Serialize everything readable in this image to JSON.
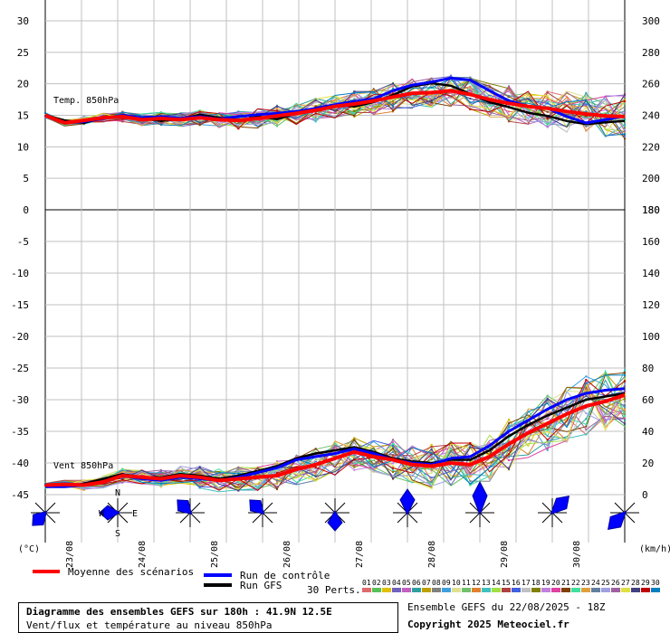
{
  "chart_data": {
    "type": "line",
    "dates": [
      "23/08",
      "24/08",
      "25/08",
      "26/08",
      "27/08",
      "28/08",
      "29/08",
      "30/08"
    ],
    "x_hours": [
      0,
      6,
      12,
      18,
      24,
      30,
      36,
      42,
      48,
      54,
      60,
      66,
      72,
      78,
      84,
      90,
      96,
      102,
      108,
      114,
      120,
      126,
      132,
      138,
      144,
      150,
      156,
      162,
      168,
      174,
      180
    ],
    "temp_panel": {
      "label": "Temp. 850hPa",
      "y_left_ticks": [
        30,
        25,
        20,
        15,
        10,
        5,
        0
      ],
      "y_right_ticks": [
        300,
        280,
        260,
        240,
        220,
        200,
        180
      ],
      "ylim": [
        0,
        30
      ],
      "mean": [
        15,
        13.8,
        14.2,
        14.6,
        14.8,
        14.3,
        14.5,
        14.3,
        14.6,
        14.3,
        14.2,
        14.5,
        14.9,
        15.3,
        15.8,
        16.4,
        16.8,
        17.3,
        17.9,
        18.5,
        18.6,
        18.9,
        18.3,
        17.5,
        16.9,
        16.4,
        16.1,
        15.6,
        15.2,
        14.9,
        14.8
      ],
      "control": [
        15,
        13.9,
        14,
        14.5,
        15,
        14.6,
        14.8,
        14.5,
        14.8,
        14.4,
        14.8,
        15.1,
        15.3,
        15.6,
        16.1,
        16.7,
        17.2,
        17.6,
        18.9,
        19.8,
        20.3,
        20.9,
        20.6,
        18.9,
        17.3,
        16.4,
        16.1,
        14.8,
        13.8,
        14.3,
        14.9
      ],
      "gfs": [
        15,
        14.2,
        13.8,
        14.6,
        14.9,
        14.5,
        14.1,
        14.4,
        15.1,
        14.6,
        14.1,
        14.8,
        14.4,
        15.3,
        16.1,
        16.7,
        16.4,
        17.1,
        18.2,
        19.6,
        20.1,
        19.7,
        18.4,
        17.1,
        16.3,
        15.4,
        14.9,
        14.1,
        13.6,
        13.9,
        14.1
      ]
    },
    "wind_panel": {
      "label": "Vent 850hPa",
      "y_left_ticks": [
        0,
        -5,
        -10,
        -15,
        -20,
        -25,
        -30,
        -35,
        -40,
        -45
      ],
      "y_right_ticks": [
        180,
        160,
        140,
        120,
        100,
        80,
        60,
        40,
        20,
        0
      ],
      "ylim": [
        0,
        180
      ],
      "units_left": "(°C)",
      "units_right": "(km/h)",
      "mean": [
        6,
        6.5,
        6,
        8,
        12,
        11,
        10,
        12,
        11,
        9,
        10,
        11,
        12,
        16,
        19,
        23,
        27,
        24,
        22,
        19,
        18,
        20,
        19,
        24,
        32,
        39,
        45,
        51,
        56,
        59,
        63
      ],
      "control": [
        5,
        5,
        6,
        8,
        12,
        10,
        9,
        11,
        10,
        9,
        11,
        14,
        17,
        22,
        24,
        26,
        29,
        26,
        22,
        20,
        19,
        23,
        24,
        31,
        40,
        47,
        54,
        60,
        64,
        66,
        67
      ],
      "gfs": [
        6,
        5,
        7,
        10,
        13,
        11,
        11,
        13,
        12,
        10,
        12,
        15,
        18,
        23,
        26,
        28,
        30,
        27,
        23,
        21,
        20,
        22,
        22,
        28,
        37,
        44,
        50,
        55,
        60,
        62,
        64
      ]
    },
    "wind_arrows": [
      {
        "dir": "SW"
      },
      {
        "dir": "W"
      },
      {
        "dir": "NW"
      },
      {
        "dir": "NW"
      },
      {
        "dir": "S"
      },
      {
        "dir": "N"
      },
      {
        "dir": "N"
      },
      {
        "dir": "NE"
      },
      {
        "dir": "SW"
      }
    ],
    "compass": {
      "n": "N",
      "s": "S",
      "e": "E",
      "w": "W"
    },
    "legend": {
      "mean": "Moyenne des scénarios",
      "control": "Run de contrôle",
      "gfs": "Run GFS",
      "perts_label": "30 Perts.",
      "perts": [
        "01",
        "02",
        "03",
        "04",
        "05",
        "06",
        "07",
        "08",
        "09",
        "10",
        "11",
        "12",
        "13",
        "14",
        "15",
        "16",
        "17",
        "18",
        "19",
        "20",
        "21",
        "22",
        "23",
        "24",
        "25",
        "26",
        "27",
        "28",
        "29",
        "30"
      ],
      "perts_colors": [
        "#e06a6a",
        "#58c058",
        "#e0c000",
        "#7060c0",
        "#c060c0",
        "#2ea0a0",
        "#c0a000",
        "#808080",
        "#3fa0e0",
        "#e0e090",
        "#70c070",
        "#e08030",
        "#40c0c0",
        "#a0e040",
        "#b04040",
        "#4060e0",
        "#c0c0c0",
        "#808000",
        "#c080e0",
        "#e040a0",
        "#804000",
        "#40e0a0",
        "#e0a040",
        "#6080a0",
        "#a0a0e0",
        "#a060a0",
        "#e0e040",
        "#404080",
        "#c00000",
        "#0080c0"
      ],
      "colors": {
        "mean": "#ff0000",
        "control": "#0000ff",
        "gfs": "#000000"
      }
    },
    "footer": {
      "title": "Diagramme des ensembles GEFS sur 180h : 41.9N 12.5E",
      "subtitle": "Vent/flux et température au niveau 850hPa",
      "run": "Ensemble GEFS du 22/08/2025 - 18Z",
      "copyright": "Copyright 2025 Meteociel.fr"
    }
  }
}
